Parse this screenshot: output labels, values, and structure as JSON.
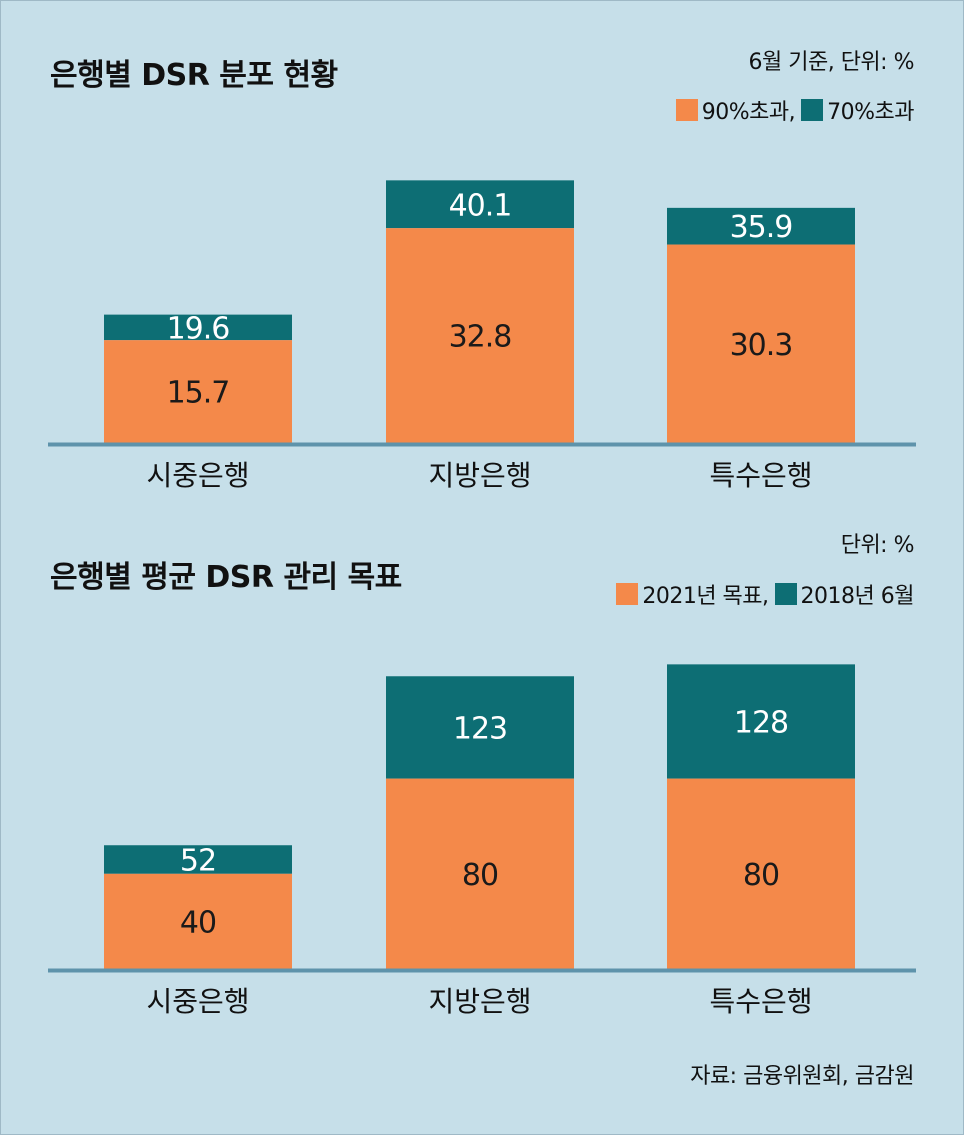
{
  "chart_data": [
    {
      "type": "bar",
      "stacked": true,
      "title": "은행별 DSR 분포 현황",
      "unit_note": "6월 기준, 단위: %",
      "categories": [
        "시중은행",
        "지방은행",
        "특수은행"
      ],
      "series": [
        {
          "name": "90%초과",
          "values": [
            15.7,
            32.8,
            30.3
          ],
          "labels": [
            "15.7",
            "32.8",
            "30.3"
          ],
          "color": "#f4894a"
        },
        {
          "name": "70%초과",
          "values": [
            19.6,
            40.1,
            35.9
          ],
          "labels": [
            "19.6",
            "40.1",
            "35.9"
          ],
          "color": "#0d6e74"
        }
      ],
      "legend": [
        {
          "label": "90%초과,",
          "color": "#f4894a"
        },
        {
          "label": "70%초과",
          "color": "#0d6e74"
        }
      ],
      "legend_position": "top-right",
      "grid": false
    },
    {
      "type": "bar",
      "stacked": true,
      "title": "은행별 평균 DSR 관리 목표",
      "unit_note": "단위: %",
      "categories": [
        "시중은행",
        "지방은행",
        "특수은행"
      ],
      "series": [
        {
          "name": "2021년 목표",
          "values": [
            40,
            80,
            80
          ],
          "labels": [
            "40",
            "80",
            "80"
          ],
          "color": "#f4894a"
        },
        {
          "name": "2018년 6월",
          "values": [
            52,
            123,
            128
          ],
          "labels": [
            "52",
            "123",
            "128"
          ],
          "color": "#0d6e74"
        }
      ],
      "legend": [
        {
          "label": "2021년 목표,",
          "color": "#f4894a"
        },
        {
          "label": "2018년 6월",
          "color": "#0d6e74"
        }
      ],
      "legend_position": "top-right",
      "grid": false
    }
  ],
  "source": "자료: 금융위원회, 금감원",
  "colors": {
    "background": "#c6dfe9",
    "orange": "#f4894a",
    "teal": "#0d6e74",
    "baseline": "#5e93ab"
  }
}
